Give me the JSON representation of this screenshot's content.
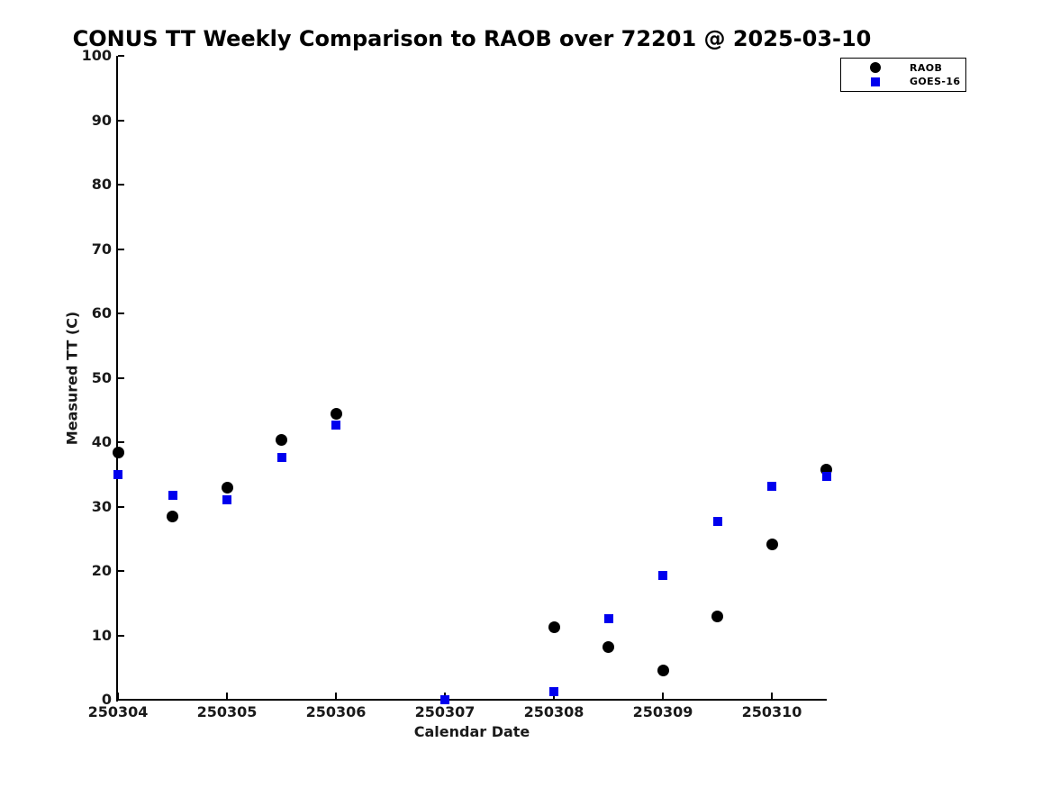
{
  "chart_data": {
    "type": "scatter",
    "title": "CONUS TT Weekly Comparison to RAOB over 72201 @ 2025-03-10",
    "xlabel": "Calendar Date",
    "ylabel": "Measured TT (C)",
    "x_tick_labels": [
      "250304",
      "250305",
      "250306",
      "250307",
      "250308",
      "250309",
      "250310"
    ],
    "x_tick_values": [
      4,
      5,
      6,
      7,
      8,
      9,
      10
    ],
    "xlim": [
      3.98,
      10.52
    ],
    "ylim": [
      0,
      100
    ],
    "y_tick_step": 10,
    "grid": false,
    "legend_position": "top-right",
    "background_color": "#ffffff",
    "axis_color": "#000000",
    "label_color": "#1a1a1a",
    "series": [
      {
        "name": "RAOB",
        "marker": "circle",
        "color": "#000000",
        "points": [
          [
            4.0,
            38.4
          ],
          [
            4.5,
            28.4
          ],
          [
            5.0,
            33.0
          ],
          [
            5.5,
            40.3
          ],
          [
            6.0,
            44.4
          ],
          [
            8.0,
            11.2
          ],
          [
            8.5,
            8.2
          ],
          [
            9.0,
            4.6
          ],
          [
            9.5,
            13.0
          ],
          [
            10.0,
            24.1
          ],
          [
            10.5,
            35.8
          ]
        ]
      },
      {
        "name": "GOES-16",
        "marker": "square",
        "color": "#0000ee",
        "points": [
          [
            4.0,
            35.0
          ],
          [
            4.5,
            31.7
          ],
          [
            5.0,
            31.1
          ],
          [
            5.5,
            37.6
          ],
          [
            6.0,
            42.7
          ],
          [
            7.0,
            0.0
          ],
          [
            8.0,
            1.3
          ],
          [
            8.5,
            12.6
          ],
          [
            9.0,
            19.3
          ],
          [
            9.5,
            27.7
          ],
          [
            10.0,
            33.1
          ],
          [
            10.5,
            34.7
          ]
        ]
      }
    ]
  }
}
